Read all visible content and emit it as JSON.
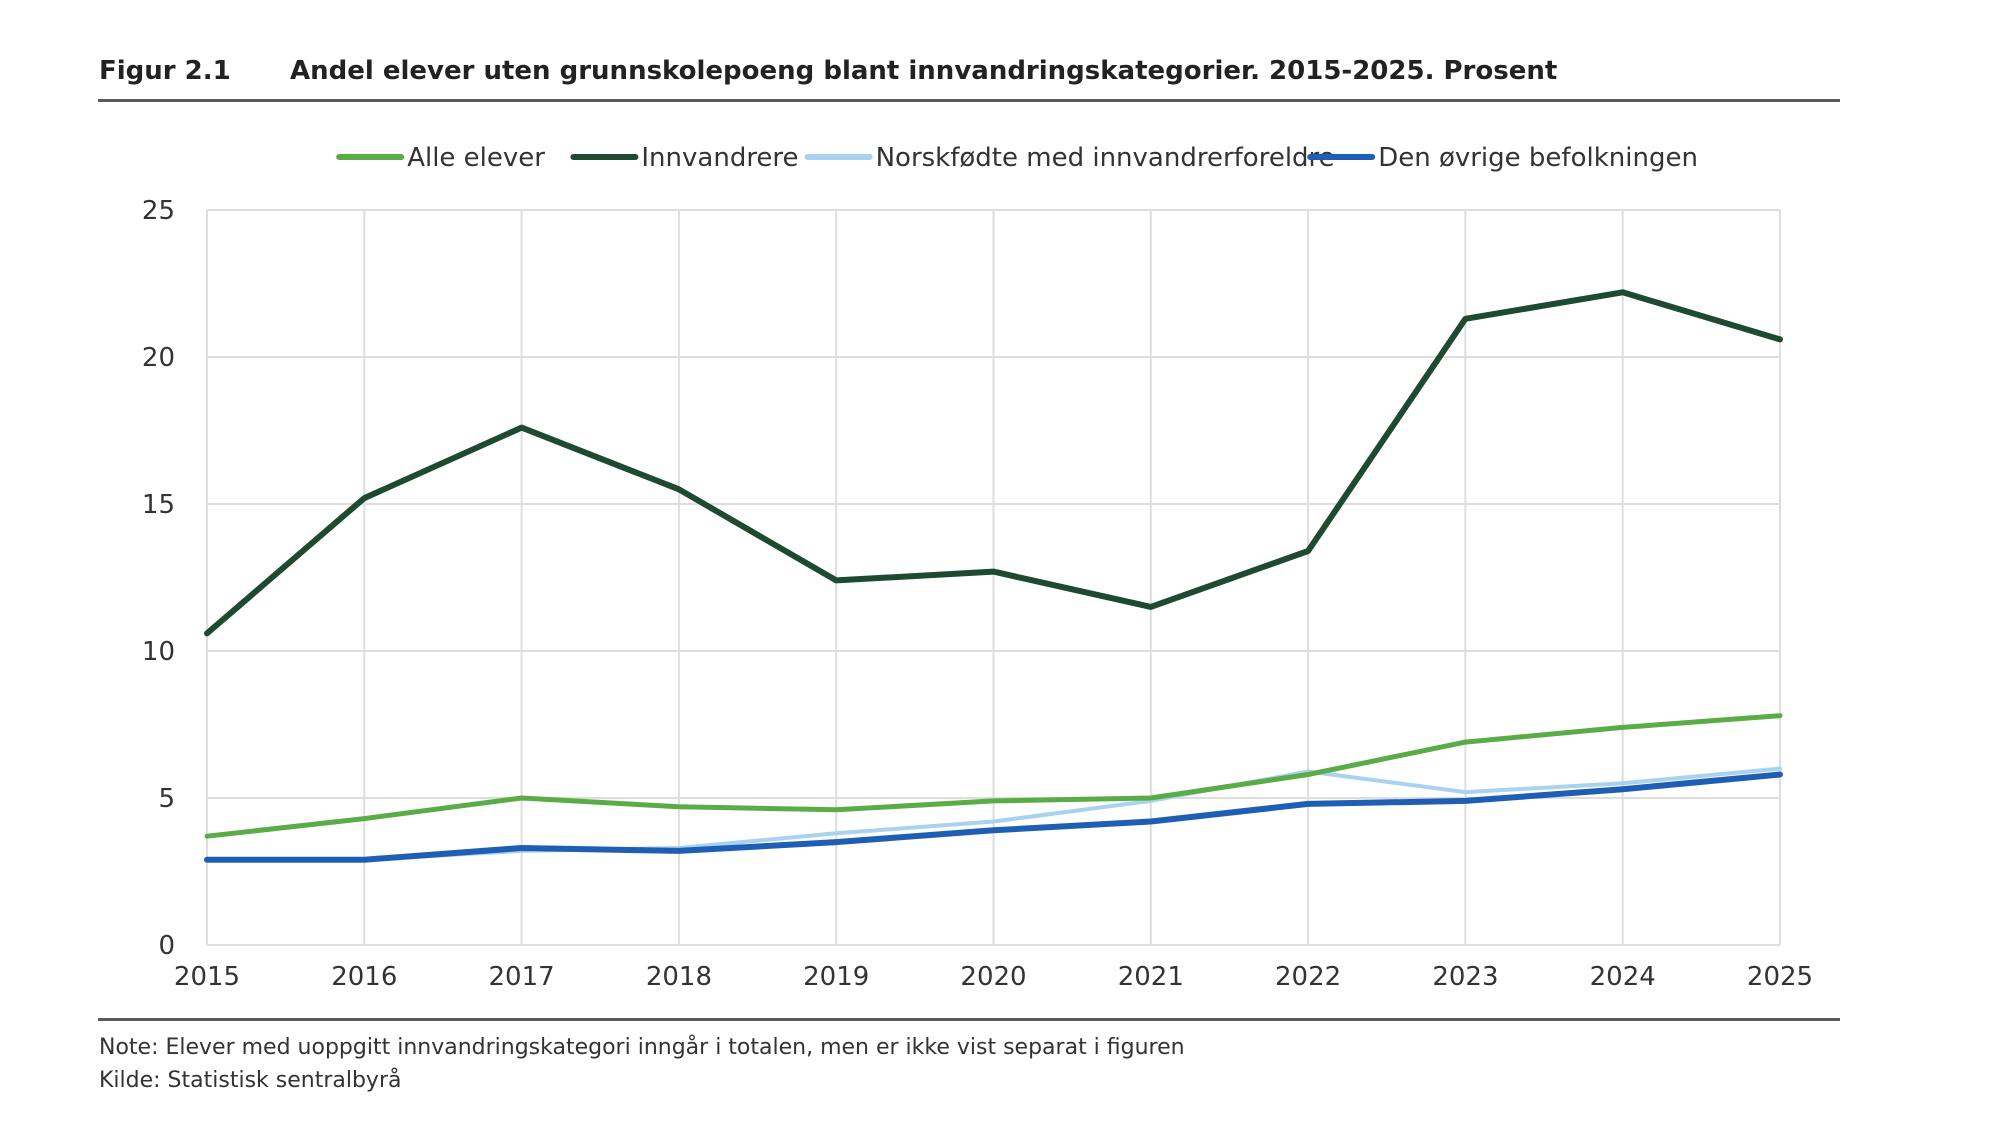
{
  "figure": {
    "number": "Figur 2.1",
    "title": "Andel elever uten grunnskolepoeng blant innvandringskategorier. 2015-2025. Prosent",
    "note": "Note: Elever med uoppgitt innvandringskategori inngår i totalen, men er ikke vist separat i figuren",
    "source": "Kilde: Statistisk sentralbyrå"
  },
  "chart_data": {
    "type": "line",
    "title": "Andel elever uten grunnskolepoeng blant innvandringskategorier. 2015-2025. Prosent",
    "xlabel": "",
    "ylabel": "",
    "x": [
      "2015",
      "2016",
      "2017",
      "2018",
      "2019",
      "2020",
      "2021",
      "2022",
      "2023",
      "2024",
      "2025"
    ],
    "ylim": [
      0,
      25
    ],
    "yticks": [
      "0",
      "5",
      "10",
      "15",
      "20",
      "25"
    ],
    "grid": true,
    "legend_position": "top",
    "series": [
      {
        "name": "Alle elever",
        "color": "#5aad46",
        "values": [
          3.7,
          4.3,
          5.0,
          4.7,
          4.6,
          4.9,
          5.0,
          5.8,
          6.9,
          7.4,
          7.8
        ]
      },
      {
        "name": "Innvandrere",
        "color": "#1f4a32",
        "values": [
          10.6,
          15.2,
          17.6,
          15.5,
          12.4,
          12.7,
          11.5,
          13.4,
          21.3,
          22.2,
          20.6
        ]
      },
      {
        "name": "Norskfødte med innvandrerforeldre",
        "color": "#a9d1f0",
        "values": [
          2.9,
          2.9,
          3.2,
          3.3,
          3.8,
          4.2,
          4.9,
          5.9,
          5.2,
          5.5,
          6.0
        ]
      },
      {
        "name": "Den øvrige befolkningen",
        "color": "#1e5fb4",
        "values": [
          2.9,
          2.9,
          3.3,
          3.2,
          3.5,
          3.9,
          4.2,
          4.8,
          4.9,
          5.3,
          5.8
        ]
      }
    ]
  }
}
